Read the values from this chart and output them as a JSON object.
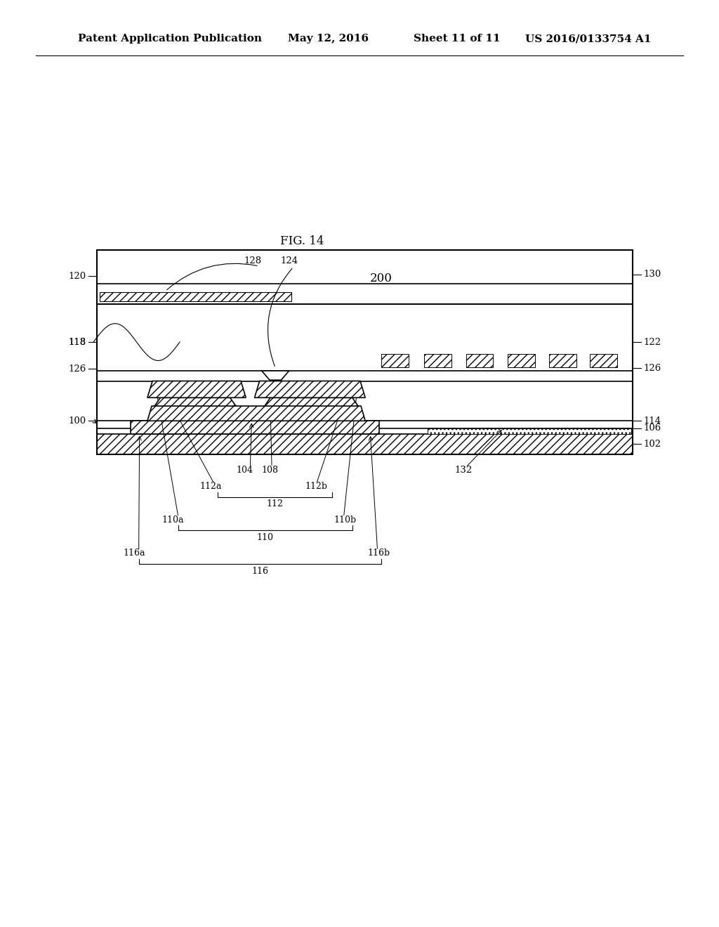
{
  "title_header": "Patent Application Publication",
  "date_header": "May 12, 2016",
  "sheet_header": "Sheet 11 of 11",
  "patent_header": "US 2016/0133754 A1",
  "fig_label": "FIG. 14",
  "device_label": "200",
  "background_color": "#ffffff",
  "line_color": "#000000"
}
